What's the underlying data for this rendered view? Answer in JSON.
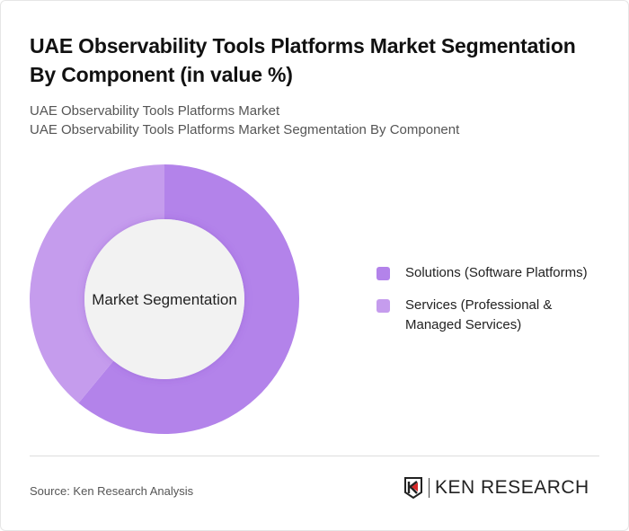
{
  "title": "UAE Observability Tools Platforms Market Segmentation By Component (in value %)",
  "subtitle_lines": [
    "UAE Observability Tools Platforms Market",
    "UAE Observability Tools Platforms Market Segmentation By Component"
  ],
  "chart_data": {
    "type": "pie",
    "variant": "donut",
    "center_label": "Market Segmentation",
    "categories": [
      "Solutions (Software Platforms)",
      "Services (Professional & Managed Services)"
    ],
    "values": [
      61,
      39
    ],
    "colors": [
      "#b383ea",
      "#c59ced"
    ],
    "legend_position": "right"
  },
  "legend": [
    "Solutions (Software Platforms)",
    "Services (Professional & Managed Services)"
  ],
  "source": "Source: Ken Research Analysis",
  "logo": {
    "text": "KEN RESEARCH"
  }
}
